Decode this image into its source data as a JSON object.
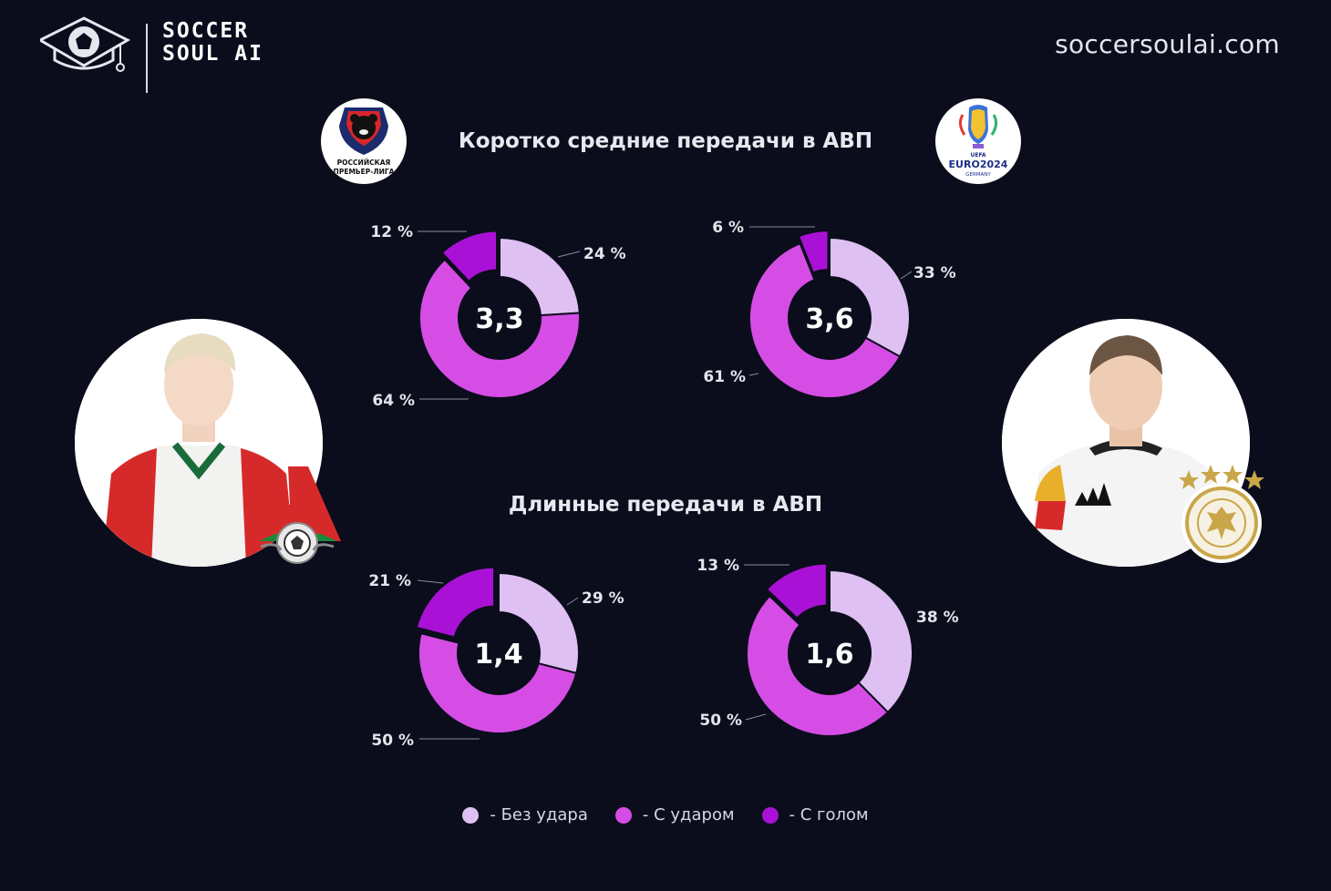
{
  "brand": {
    "line1": "SOCCER",
    "line2": "SOUL AI"
  },
  "site_url": "soccersoulai.com",
  "badges": {
    "league_left": {
      "line1": "РОССИЙСКАЯ",
      "line2": "ПРЕМЬЕР-ЛИГА"
    },
    "league_right": {
      "line1": "UEFA",
      "line2": "EURO2024",
      "line3": "GERMANY"
    }
  },
  "titles": {
    "short_medium": "Коротко средние передачи в АВП",
    "long": "Длинные передачи в АВП"
  },
  "colors": {
    "no_shot": "#dfc0f2",
    "with_shot": "#d64de6",
    "with_goal": "#aa11d6",
    "background": "#0b0d1c"
  },
  "legend": [
    {
      "label": "- Без удара",
      "color": "#dfc0f2"
    },
    {
      "label": "- С ударом",
      "color": "#d64de6"
    },
    {
      "label": "- С голом",
      "color": "#aa11d6"
    }
  ],
  "chart_data": [
    {
      "type": "pie",
      "title": "Коротко средние передачи в АВП",
      "center_label": "3,3",
      "categories": [
        "Без удара",
        "С ударом",
        "С голом"
      ],
      "values": [
        24,
        64,
        12
      ],
      "labels": [
        "24 %",
        "64 %",
        "12 %"
      ]
    },
    {
      "type": "pie",
      "title": "Коротко средние передачи в АВП",
      "center_label": "3,6",
      "categories": [
        "Без удара",
        "С ударом",
        "С голом"
      ],
      "values": [
        33,
        61,
        6
      ],
      "labels": [
        "33 %",
        "61 %",
        "6 %"
      ]
    },
    {
      "type": "pie",
      "title": "Длинные передачи в АВП",
      "center_label": "1,4",
      "categories": [
        "Без удара",
        "С ударом",
        "С голом"
      ],
      "values": [
        29,
        50,
        21
      ],
      "labels": [
        "29 %",
        "50 %",
        "21 %"
      ]
    },
    {
      "type": "pie",
      "title": "Длинные передачи в АВП",
      "center_label": "1,6",
      "categories": [
        "Без удара",
        "С ударом",
        "С голом"
      ],
      "values": [
        38,
        50,
        13
      ],
      "labels": [
        "38 %",
        "50 %",
        "13 %"
      ]
    }
  ]
}
